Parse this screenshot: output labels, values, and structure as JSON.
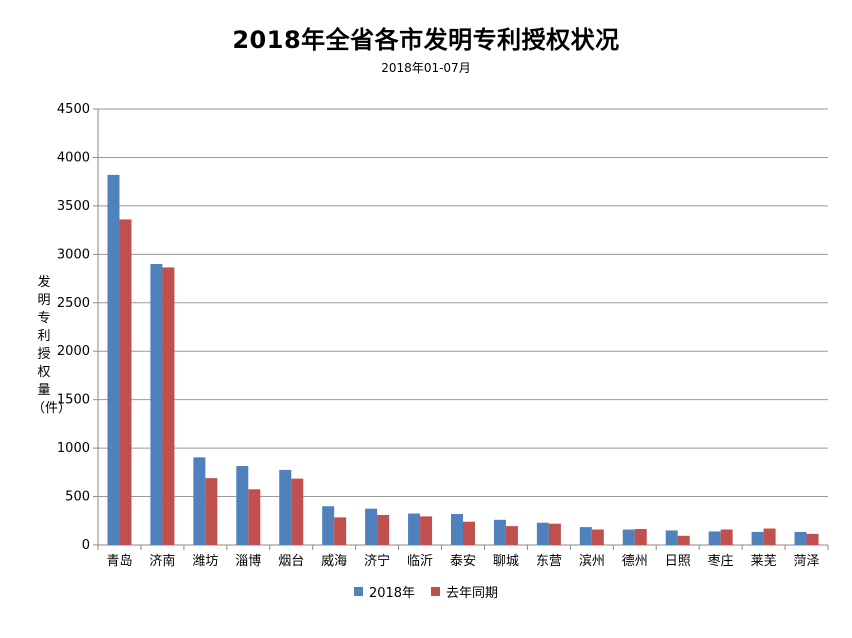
{
  "chart_data": {
    "type": "bar",
    "title": "2018年全省各市发明专利授权状况",
    "subtitle": "2018年01-07月",
    "ylabel": "发明专利授权量（件）",
    "xlabel": "",
    "ylim": [
      0,
      4500
    ],
    "yticks": [
      0,
      500,
      1000,
      1500,
      2000,
      2500,
      3000,
      3500,
      4000,
      4500
    ],
    "grid": true,
    "legend_position": "bottom",
    "categories": [
      "青岛",
      "济南",
      "潍坊",
      "淄博",
      "烟台",
      "威海",
      "济宁",
      "临沂",
      "泰安",
      "聊城",
      "东营",
      "滨州",
      "德州",
      "日照",
      "枣庄",
      "莱芜",
      "菏泽"
    ],
    "series": [
      {
        "name": "2018年",
        "color": "#4F81BD",
        "values": [
          3820,
          2900,
          905,
          815,
          775,
          400,
          375,
          325,
          320,
          260,
          230,
          185,
          160,
          150,
          140,
          135,
          135
        ]
      },
      {
        "name": "去年同期",
        "color": "#C0504D",
        "values": [
          3360,
          2865,
          690,
          575,
          685,
          285,
          310,
          295,
          240,
          195,
          220,
          160,
          165,
          95,
          160,
          170,
          115
        ]
      }
    ]
  }
}
